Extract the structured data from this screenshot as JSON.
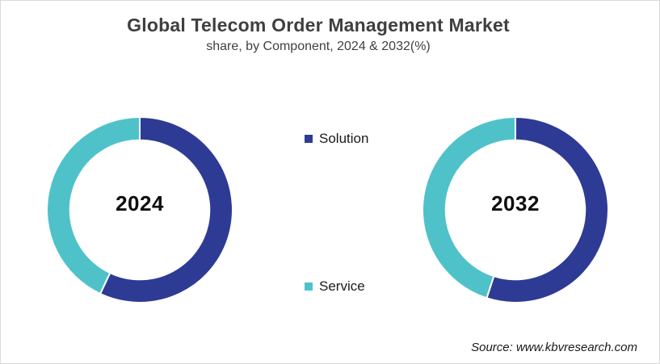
{
  "header": {
    "title": "Global Telecom Order Management Market",
    "subtitle": "share, by Component, 2024 & 2032(%)"
  },
  "legend": {
    "items": [
      {
        "label": "Solution",
        "color": "#2D3B94"
      },
      {
        "label": "Service",
        "color": "#4FC2C9"
      }
    ]
  },
  "source": "Source: www.kbvresearch.com",
  "colors": {
    "solution_blue": "#2D3B94",
    "service_teal": "#4FC2C9",
    "title_gray": "#3f3f3f",
    "background": "#ffffff"
  },
  "chart_data": [
    {
      "type": "pie",
      "subtype": "donut",
      "title": "2024",
      "center_label": "2024",
      "categories": [
        "Solution",
        "Service"
      ],
      "values": [
        57,
        43
      ],
      "colors": [
        "#2D3B94",
        "#4FC2C9"
      ],
      "units": "%",
      "start_angle_deg": 0,
      "direction": "clockwise",
      "inner_radius_ratio": 0.75,
      "slice_gap_stroke": "#ffffff"
    },
    {
      "type": "pie",
      "subtype": "donut",
      "title": "2032",
      "center_label": "2032",
      "categories": [
        "Solution",
        "Service"
      ],
      "values": [
        55,
        45
      ],
      "colors": [
        "#2D3B94",
        "#4FC2C9"
      ],
      "units": "%",
      "start_angle_deg": 0,
      "direction": "clockwise",
      "inner_radius_ratio": 0.75,
      "slice_gap_stroke": "#ffffff"
    }
  ]
}
